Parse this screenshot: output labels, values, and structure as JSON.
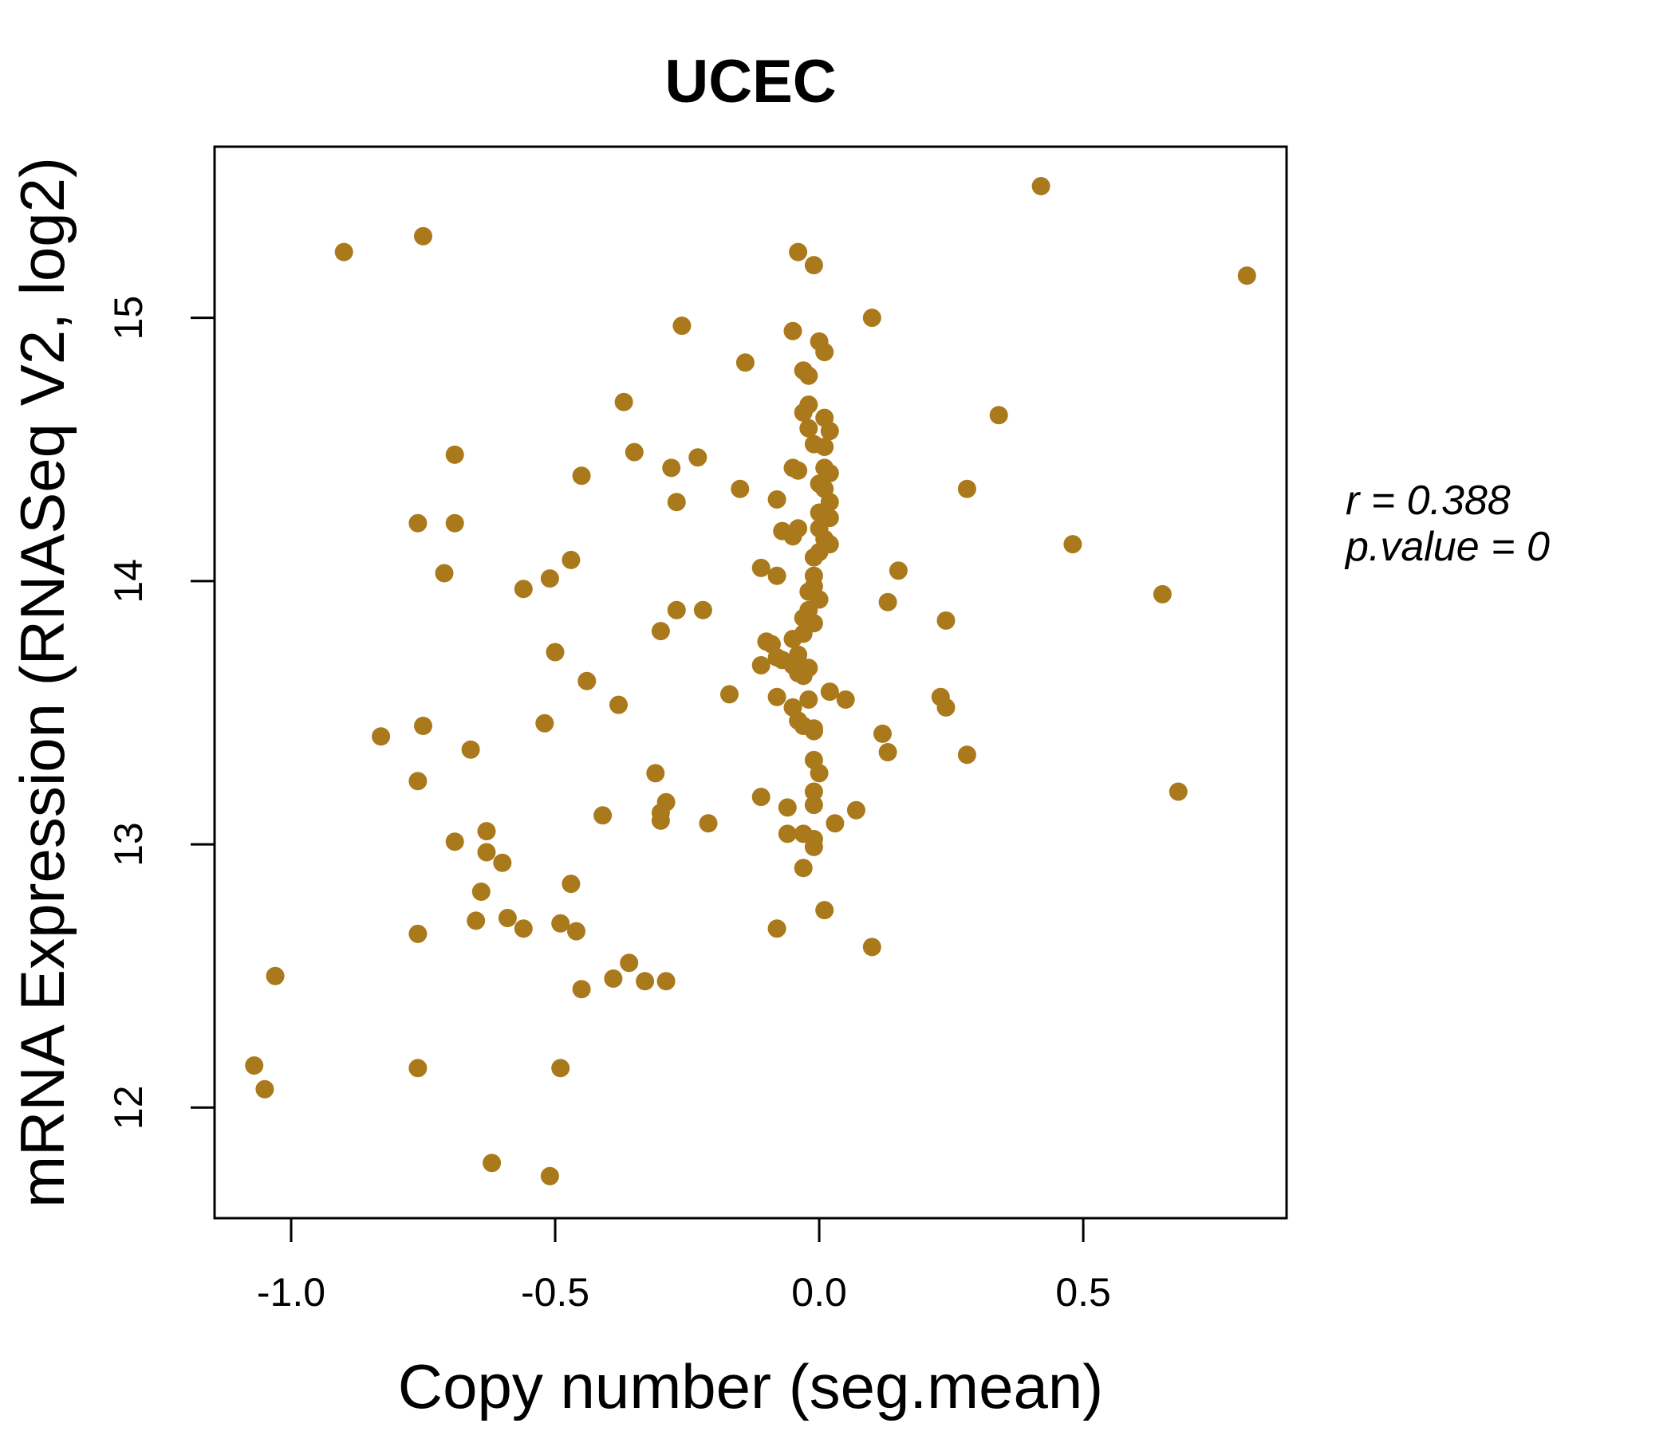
{
  "chart_data": {
    "type": "scatter",
    "title": "UCEC",
    "title_color": "#B0821C",
    "point_color": "#A9791B",
    "xlabel": "Copy number (seg.mean)",
    "ylabel": "mRNA Expression (RNASeq V2, log2)",
    "xlim": [
      -1.145,
      0.885
    ],
    "ylim": [
      11.58,
      15.65
    ],
    "grid": false,
    "legend": "none",
    "x_ticks": [
      -1.0,
      -0.5,
      0.0,
      0.5
    ],
    "x_tick_labels": [
      "-1.0",
      "-0.5",
      "0.0",
      "0.5"
    ],
    "y_ticks": [
      12,
      13,
      14,
      15
    ],
    "y_tick_labels": [
      "12",
      "13",
      "14",
      "15"
    ],
    "annotation": {
      "line1": "r = 0.388",
      "line2": "p.value = 0"
    },
    "points": [
      [
        -0.9,
        15.25
      ],
      [
        -0.75,
        15.31
      ],
      [
        -0.26,
        14.97
      ],
      [
        -0.14,
        14.83
      ],
      [
        -0.37,
        14.68
      ],
      [
        -0.35,
        14.49
      ],
      [
        -0.28,
        14.43
      ],
      [
        -0.23,
        14.47
      ],
      [
        -0.15,
        14.35
      ],
      [
        -0.69,
        14.48
      ],
      [
        -0.45,
        14.4
      ],
      [
        -0.27,
        14.3
      ],
      [
        -0.76,
        14.22
      ],
      [
        -0.69,
        14.22
      ],
      [
        -0.71,
        14.03
      ],
      [
        -0.47,
        14.08
      ],
      [
        -0.51,
        14.01
      ],
      [
        -0.56,
        13.97
      ],
      [
        -0.27,
        13.89
      ],
      [
        -0.22,
        13.89
      ],
      [
        -0.3,
        13.81
      ],
      [
        -0.5,
        13.73
      ],
      [
        -0.44,
        13.62
      ],
      [
        0.42,
        15.5
      ],
      [
        -0.04,
        15.25
      ],
      [
        -0.01,
        15.2
      ],
      [
        0.81,
        15.16
      ],
      [
        0.1,
        15.0
      ],
      [
        -0.05,
        14.95
      ],
      [
        0.0,
        14.91
      ],
      [
        0.01,
        14.87
      ],
      [
        -0.03,
        14.8
      ],
      [
        -0.02,
        14.78
      ],
      [
        0.34,
        14.63
      ],
      [
        -0.02,
        14.67
      ],
      [
        -0.03,
        14.64
      ],
      [
        0.01,
        14.62
      ],
      [
        -0.02,
        14.58
      ],
      [
        0.02,
        14.57
      ],
      [
        -0.01,
        14.52
      ],
      [
        0.01,
        14.51
      ],
      [
        -0.05,
        14.43
      ],
      [
        -0.04,
        14.42
      ],
      [
        0.01,
        14.43
      ],
      [
        0.02,
        14.41
      ],
      [
        0.0,
        14.37
      ],
      [
        0.01,
        14.35
      ],
      [
        0.28,
        14.35
      ],
      [
        -0.08,
        14.31
      ],
      [
        0.02,
        14.3
      ],
      [
        0.0,
        14.26
      ],
      [
        0.02,
        14.24
      ],
      [
        -0.07,
        14.19
      ],
      [
        -0.04,
        14.2
      ],
      [
        -0.05,
        14.17
      ],
      [
        0.0,
        14.2
      ],
      [
        0.01,
        14.16
      ],
      [
        0.02,
        14.14
      ],
      [
        0.0,
        14.11
      ],
      [
        -0.01,
        14.09
      ],
      [
        0.48,
        14.14
      ],
      [
        -0.11,
        14.05
      ],
      [
        -0.08,
        14.02
      ],
      [
        -0.01,
        14.02
      ],
      [
        0.15,
        14.04
      ],
      [
        -0.01,
        13.98
      ],
      [
        -0.02,
        13.96
      ],
      [
        0.0,
        13.93
      ],
      [
        0.13,
        13.92
      ],
      [
        -0.02,
        13.89
      ],
      [
        -0.03,
        13.86
      ],
      [
        -0.01,
        13.84
      ],
      [
        0.65,
        13.95
      ],
      [
        0.24,
        13.85
      ],
      [
        -0.03,
        13.8
      ],
      [
        -0.1,
        13.77
      ],
      [
        -0.05,
        13.78
      ],
      [
        -0.09,
        13.76
      ],
      [
        -0.07,
        13.7
      ],
      [
        -0.05,
        13.68
      ],
      [
        -0.02,
        13.67
      ],
      [
        -0.11,
        13.68
      ],
      [
        -0.08,
        13.71
      ],
      [
        -0.04,
        13.72
      ],
      [
        -0.04,
        13.65
      ],
      [
        -0.03,
        13.64
      ],
      [
        -0.08,
        13.56
      ],
      [
        -0.05,
        13.52
      ],
      [
        -0.02,
        13.55
      ],
      [
        0.02,
        13.58
      ],
      [
        0.05,
        13.55
      ],
      [
        -0.03,
        13.45
      ],
      [
        -0.01,
        13.43
      ],
      [
        0.12,
        13.42
      ],
      [
        0.13,
        13.35
      ],
      [
        -0.01,
        13.32
      ],
      [
        0.0,
        13.27
      ],
      [
        -0.01,
        13.2
      ],
      [
        -0.01,
        13.15
      ],
      [
        -0.11,
        13.18
      ],
      [
        -0.06,
        13.14
      ],
      [
        0.07,
        13.13
      ],
      [
        0.03,
        13.08
      ],
      [
        -0.06,
        13.04
      ],
      [
        -0.03,
        13.04
      ],
      [
        -0.01,
        13.02
      ],
      [
        -0.01,
        12.99
      ],
      [
        -0.03,
        12.91
      ],
      [
        0.01,
        12.75
      ],
      [
        -0.08,
        12.68
      ],
      [
        0.1,
        12.61
      ],
      [
        0.23,
        13.56
      ],
      [
        0.24,
        13.52
      ],
      [
        0.28,
        13.34
      ],
      [
        0.68,
        13.2
      ],
      [
        -0.04,
        13.47
      ],
      [
        -0.01,
        13.44
      ],
      [
        -0.17,
        13.57
      ],
      [
        -0.38,
        13.53
      ],
      [
        -0.75,
        13.45
      ],
      [
        -0.52,
        13.46
      ],
      [
        -0.83,
        13.41
      ],
      [
        -0.66,
        13.36
      ],
      [
        -0.76,
        13.24
      ],
      [
        -0.31,
        13.27
      ],
      [
        -0.41,
        13.11
      ],
      [
        -0.29,
        13.16
      ],
      [
        -0.3,
        13.12
      ],
      [
        -0.3,
        13.09
      ],
      [
        -0.21,
        13.08
      ],
      [
        -0.63,
        13.05
      ],
      [
        -0.69,
        13.01
      ],
      [
        -0.63,
        12.97
      ],
      [
        -0.6,
        12.93
      ],
      [
        -0.64,
        12.82
      ],
      [
        -0.47,
        12.85
      ],
      [
        -0.65,
        12.71
      ],
      [
        -0.76,
        12.66
      ],
      [
        -0.59,
        12.72
      ],
      [
        -0.56,
        12.68
      ],
      [
        -0.49,
        12.7
      ],
      [
        -0.46,
        12.67
      ],
      [
        -0.36,
        12.55
      ],
      [
        -0.39,
        12.49
      ],
      [
        -0.33,
        12.48
      ],
      [
        -0.29,
        12.48
      ],
      [
        -0.45,
        12.45
      ],
      [
        -1.03,
        12.5
      ],
      [
        -1.07,
        12.16
      ],
      [
        -1.05,
        12.07
      ],
      [
        -0.76,
        12.15
      ],
      [
        -0.49,
        12.15
      ],
      [
        -0.62,
        11.79
      ],
      [
        -0.51,
        11.74
      ]
    ]
  }
}
